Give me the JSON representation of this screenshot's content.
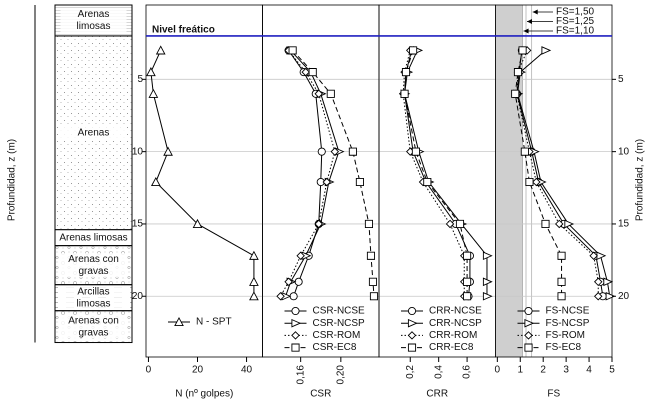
{
  "depth_axis": {
    "label": "Profundidad, z (m)",
    "ylim": [
      -0.14,
      24.2
    ],
    "yticks": [
      5,
      10,
      15,
      20
    ]
  },
  "water_table": {
    "label": "Nivel freático",
    "depth": 2.0,
    "color": "#2020c0"
  },
  "soil_column": {
    "layers": [
      {
        "lines": [
          "Arenas",
          "limosas"
        ],
        "top": -0.14,
        "bottom": 2.0,
        "pattern": "lines"
      },
      {
        "lines": [
          "Arenas"
        ],
        "top": 2.0,
        "bottom": 15.4,
        "pattern": "dots"
      },
      {
        "lines": [
          "Arenas limosas"
        ],
        "top": 15.4,
        "bottom": 16.5,
        "pattern": "none"
      },
      {
        "lines": [
          "Arenas con",
          "gravas"
        ],
        "top": 16.5,
        "bottom": 19.2,
        "pattern": "gravel"
      },
      {
        "lines": [
          "Arcillas",
          "limosas"
        ],
        "top": 19.2,
        "bottom": 21.0,
        "pattern": "clay"
      },
      {
        "lines": [
          "Arenas con",
          "gravas"
        ],
        "top": 21.0,
        "bottom": 23.2,
        "pattern": "gravel"
      }
    ]
  },
  "chart_data": [
    {
      "type": "line",
      "xlabel": "N (nº golpes)",
      "xlim": [
        -1,
        46.5
      ],
      "xticks": [
        0,
        20,
        40
      ],
      "depths": [
        3.0,
        4.5,
        6.0,
        10.0,
        12.1,
        15.0,
        17.2,
        19.0,
        20.0
      ],
      "series": [
        {
          "name": "N - SPT",
          "color": "#000000",
          "marker": "triangle",
          "dash": "solid",
          "values": [
            5,
            1,
            2,
            8,
            3,
            20,
            43,
            43,
            43
          ]
        }
      ]
    },
    {
      "type": "line",
      "xlabel": "CSR",
      "xlim": [
        0.122,
        0.238
      ],
      "rotate_xticks": true,
      "xticks": [
        {
          "value": 0.16,
          "label": "0,16"
        },
        {
          "value": 0.2,
          "label": "0,20"
        }
      ],
      "depths": [
        3.0,
        4.5,
        6.0,
        10.0,
        12.1,
        15.0,
        17.2,
        19.0,
        20.0
      ],
      "series": [
        {
          "name": "CSR-NCSE",
          "color": "#000000",
          "marker": "circle",
          "dash": "solid",
          "values": [
            0.148,
            0.163,
            0.175,
            0.181,
            0.18,
            0.178,
            0.168,
            0.158,
            0.153
          ]
        },
        {
          "name": "CSR-NCSP",
          "color": "#000000",
          "marker": "triangle-right",
          "dash": "solid",
          "values": [
            0.15,
            0.17,
            0.18,
            0.198,
            0.188,
            0.18,
            0.165,
            0.15,
            0.145
          ]
        },
        {
          "name": "CSR-ROM",
          "color": "#000000",
          "marker": "diamond",
          "dash": "dotted",
          "values": [
            0.148,
            0.165,
            0.178,
            0.194,
            0.186,
            0.178,
            0.16,
            0.148,
            0.14
          ]
        },
        {
          "name": "CSR-EC8",
          "color": "#000000",
          "marker": "square",
          "dash": "dashed",
          "values": [
            0.152,
            0.172,
            0.19,
            0.212,
            0.219,
            0.228,
            0.23,
            0.232,
            0.233
          ]
        }
      ]
    },
    {
      "type": "line",
      "xlabel": "CRR",
      "xlim": [
        -0.02,
        0.8
      ],
      "rotate_xticks": true,
      "xticks": [
        {
          "value": 0.2,
          "label": "0,2"
        },
        {
          "value": 0.4,
          "label": "0,4"
        },
        {
          "value": 0.6,
          "label": "0,6"
        }
      ],
      "depths": [
        3.0,
        4.5,
        6.0,
        10.0,
        12.1,
        15.0,
        17.2,
        19.0,
        20.0
      ],
      "series": [
        {
          "name": "CRR-NCSE",
          "color": "#000000",
          "marker": "circle",
          "dash": "solid",
          "values": [
            0.21,
            0.17,
            0.16,
            0.22,
            0.31,
            0.52,
            0.62,
            0.62,
            0.61
          ]
        },
        {
          "name": "CRR-NCSP",
          "color": "#000000",
          "marker": "triangle-right",
          "dash": "solid",
          "values": [
            0.25,
            0.18,
            0.16,
            0.26,
            0.33,
            0.56,
            0.74,
            0.74,
            0.74
          ]
        },
        {
          "name": "CRR-ROM",
          "color": "#000000",
          "marker": "diamond",
          "dash": "dotted",
          "values": [
            0.2,
            0.16,
            0.15,
            0.2,
            0.29,
            0.48,
            0.58,
            0.58,
            0.58
          ]
        },
        {
          "name": "CRR-EC8",
          "color": "#000000",
          "marker": "square",
          "dash": "dashed",
          "values": [
            0.22,
            0.17,
            0.16,
            0.24,
            0.32,
            0.55,
            0.6,
            0.6,
            0.6
          ]
        }
      ]
    },
    {
      "type": "line",
      "xlabel": "FS",
      "xlim": [
        -0.08,
        5
      ],
      "xticks": [
        0,
        1,
        2,
        3,
        4,
        5
      ],
      "shaded_to": 1.1,
      "shade_color": "#cfcfcf",
      "thresholds": [
        {
          "value": 1.5,
          "label": "FS=1,50"
        },
        {
          "value": 1.25,
          "label": "FS=1,25"
        },
        {
          "value": 1.1,
          "label": "FS=1,10"
        }
      ],
      "depths": [
        3.0,
        4.5,
        6.0,
        10.0,
        12.1,
        15.0,
        17.2,
        19.0,
        20.0
      ],
      "series": [
        {
          "name": "FS-NCSE",
          "color": "#000000",
          "marker": "circle",
          "dash": "solid",
          "values": [
            1.07,
            0.95,
            0.86,
            1.5,
            1.8,
            2.9,
            4.3,
            4.5,
            4.6
          ]
        },
        {
          "name": "FS-NCSP",
          "color": "#000000",
          "marker": "triangle-right",
          "dash": "solid",
          "values": [
            2.1,
            1.0,
            0.88,
            1.6,
            1.9,
            3.1,
            4.5,
            4.8,
            4.9
          ]
        },
        {
          "name": "FS-ROM",
          "color": "#000000",
          "marker": "diamond",
          "dash": "dotted",
          "values": [
            1.3,
            0.9,
            0.85,
            1.4,
            1.7,
            2.7,
            4.2,
            4.4,
            4.4
          ]
        },
        {
          "name": "FS-EC8",
          "color": "#000000",
          "marker": "square",
          "dash": "dashed",
          "values": [
            1.1,
            0.9,
            0.78,
            1.2,
            1.4,
            2.1,
            2.8,
            2.8,
            2.8
          ]
        }
      ]
    }
  ]
}
